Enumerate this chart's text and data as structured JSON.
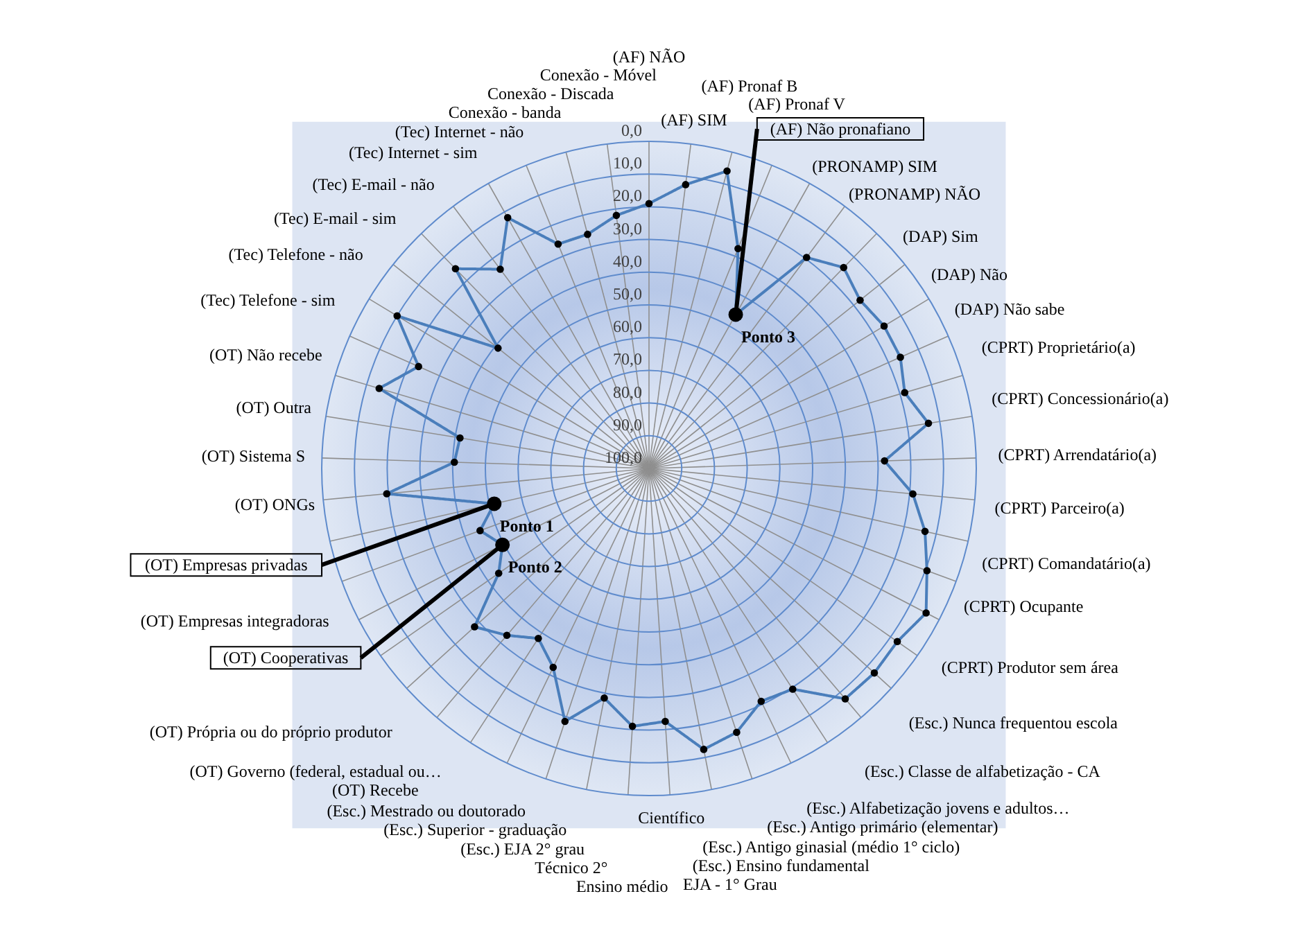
{
  "chart_data": {
    "type": "radar",
    "categories": [
      "(AF) NÃO",
      "(AF) SIM",
      "(AF) Pronaf B",
      "(AF) Pronaf V",
      "(AF) Não pronafiano",
      "(PRONAMP) SIM",
      "(PRONAMP) NÃO",
      "(DAP) Sim",
      "(DAP) Não",
      "(DAP) Não sabe",
      "(CPRT) Proprietário(a)",
      "(CPRT) Concessionário(a)",
      "(CPRT) Arrendatário(a)",
      "(CPRT) Parceiro(a)",
      "(CPRT) Comandatário(a)",
      "(CPRT) Ocupante",
      "(CPRT) Produtor sem área",
      "(Esc.) Nunca frequentou escola",
      "(Esc.) Classe de alfabetização - CA",
      "(Esc.) Alfabetização jovens e adultos…",
      "(Esc.) Antigo primário (elementar)",
      "(Esc.) Antigo ginasial (médio 1° ciclo)",
      "(Esc.) Ensino fundamental",
      "EJA - 1° Grau",
      "Científico",
      "Ensino médio",
      "Técnico 2°",
      "(Esc.) EJA 2° grau",
      "(Esc.) Superior - graduação",
      "(Esc.) Mestrado ou doutorado",
      "(OT) Recebe",
      "(OT) Governo (federal, estadual ou…",
      "(OT) Própria ou do próprio produtor",
      "(OT) Cooperativas",
      "(OT) Empresas integradoras",
      "(OT) Empresas privadas",
      "(OT) ONGs",
      "(OT) Sistema S",
      "(OT) Outra",
      "(OT) Não recebe",
      "(Tec) Telefone - sim",
      "(Tec) Telefone - não",
      "(Tec) E-mail - sim",
      "(Tec) E-mail - não",
      "(Tec) Internet - sim",
      "(Tec) Internet - não",
      "Conexão - banda",
      "Conexão - Discada",
      "Conexão - Móvel"
    ],
    "series": [
      {
        "color": "#4a7ebb",
        "values": [
          19,
          12.5,
          6,
          27.5,
          46,
          19.5,
          14.5,
          17.5,
          16,
          16,
          18.5,
          13.5,
          28,
          19,
          13.5,
          9.5,
          4.5,
          7.5,
          7,
          7.5,
          19.5,
          21,
          15,
          12.5,
          22.5,
          21,
          28.5,
          18.5,
          32.5,
          38,
          33,
          28,
          44,
          49.5,
          45,
          51.5,
          19.5,
          40.5,
          41.5,
          14,
          23,
          10,
          41,
          15,
          24,
          12,
          26,
          26,
          22
        ]
      }
    ],
    "ylim": [
      100,
      0
    ],
    "yticks": [
      {
        "value": 0,
        "label": "0,0"
      },
      {
        "value": 10,
        "label": "10,0"
      },
      {
        "value": 20,
        "label": "20,0"
      },
      {
        "value": 30,
        "label": "30,0"
      },
      {
        "value": 40,
        "label": "40,0"
      },
      {
        "value": 50,
        "label": "50,0"
      },
      {
        "value": 60,
        "label": "60,0"
      },
      {
        "value": 70,
        "label": "70,0"
      },
      {
        "value": 80,
        "label": "80,0"
      },
      {
        "value": 90,
        "label": "90,0"
      },
      {
        "value": 100,
        "label": "100,0"
      }
    ],
    "grid": true,
    "marker": "circle",
    "line_style": "solid",
    "annotations": [
      {
        "text": "Ponto 1",
        "x": "(OT) Empresas privadas"
      },
      {
        "text": "Ponto 2",
        "x": "(OT) Cooperativas"
      },
      {
        "text": "Ponto 3",
        "x": "(AF) Não pronafiano"
      }
    ]
  }
}
